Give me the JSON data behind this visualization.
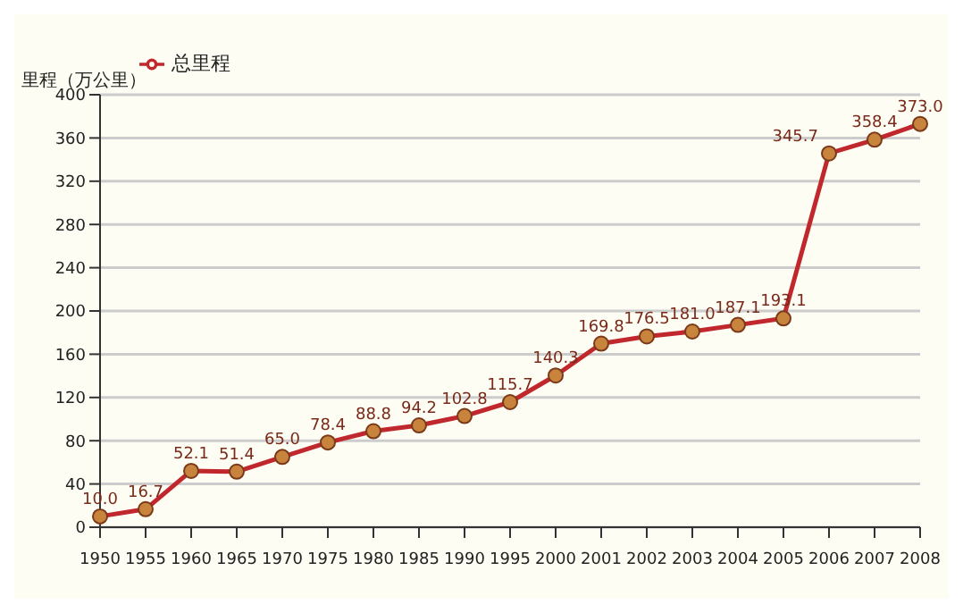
{
  "chart_data": {
    "type": "line",
    "ylabel": "里程（万公里）",
    "categories": [
      "1950",
      "1955",
      "1960",
      "1965",
      "1970",
      "1975",
      "1980",
      "1985",
      "1990",
      "1995",
      "2000",
      "2001",
      "2002",
      "2003",
      "2004",
      "2005",
      "2006",
      "2007",
      "2008"
    ],
    "series": [
      {
        "name": "总里程",
        "color": "#c0282d",
        "values": [
          10.0,
          16.7,
          52.1,
          51.4,
          65.0,
          78.4,
          88.8,
          94.2,
          102.8,
          115.7,
          140.3,
          169.8,
          176.5,
          181.0,
          187.1,
          193.1,
          345.7,
          358.4,
          373.0
        ],
        "value_labels": [
          "10.0",
          "16.7",
          "52.1",
          "51.4",
          "65.0",
          "78.4",
          "88.8",
          "94.2",
          "102.8",
          "115.7",
          "140.3",
          "169.8",
          "176.5",
          "181.0",
          "187.1",
          "193.1",
          "345.7",
          "358.4",
          "373.0"
        ]
      }
    ],
    "ylim": [
      0,
      400
    ],
    "yticks": [
      0,
      40,
      80,
      120,
      160,
      200,
      240,
      280,
      320,
      360,
      400
    ],
    "grid": "y",
    "legend": "top left",
    "marker": "circle",
    "line_style": "solid"
  }
}
